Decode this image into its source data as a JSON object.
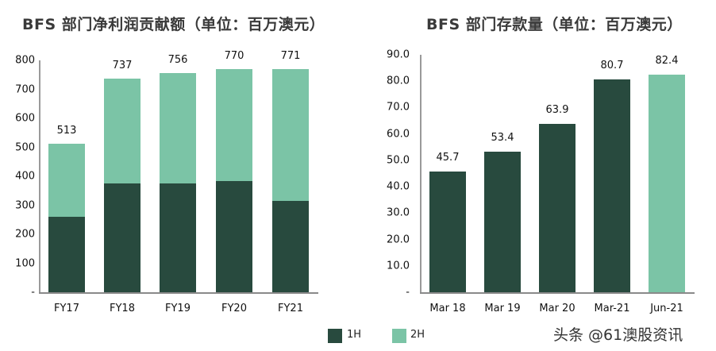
{
  "chart_data": [
    {
      "type": "bar",
      "stacked": true,
      "title": "BFS 部门净利润贡献额（单位：百万澳元）",
      "categories": [
        "FY17",
        "FY18",
        "FY19",
        "FY20",
        "FY21"
      ],
      "series": [
        {
          "name": "1H",
          "color": "#284a3e",
          "values": [
            260,
            375,
            375,
            384,
            315
          ]
        },
        {
          "name": "2H",
          "color": "#7bc4a6",
          "values": [
            253,
            362,
            381,
            386,
            456
          ]
        }
      ],
      "totals": [
        513,
        737,
        756,
        770,
        771
      ],
      "total_labels": [
        "513",
        "737",
        "756",
        "770",
        "771"
      ],
      "yticks": [
        "-",
        "100",
        "200",
        "300",
        "400",
        "500",
        "600",
        "700",
        "800"
      ],
      "ylim": [
        0,
        800
      ],
      "xlabel": "",
      "ylabel": "",
      "grid": false,
      "legend_position": "bottom"
    },
    {
      "type": "bar",
      "title": "BFS 部门存款量（单位：百万澳元）",
      "categories": [
        "Mar 18",
        "Mar 19",
        "Mar 20",
        "Mar-21",
        "Jun-21"
      ],
      "values": [
        45.7,
        53.4,
        63.9,
        80.7,
        82.4
      ],
      "value_labels": [
        "45.7",
        "53.4",
        "63.9",
        "80.7",
        "82.4"
      ],
      "bar_colors": [
        "#284a3e",
        "#284a3e",
        "#284a3e",
        "#284a3e",
        "#7bc4a6"
      ],
      "yticks": [
        "-",
        "10.0",
        "20.0",
        "30.0",
        "40.0",
        "50.0",
        "60.0",
        "70.0",
        "80.0",
        "90.0"
      ],
      "ylim": [
        0,
        90
      ],
      "xlabel": "",
      "ylabel": "",
      "grid": false
    }
  ],
  "legend": [
    {
      "label": "1H",
      "color": "#284a3e"
    },
    {
      "label": "2H",
      "color": "#7bc4a6"
    }
  ],
  "watermark": "头条 @61澳股资讯"
}
